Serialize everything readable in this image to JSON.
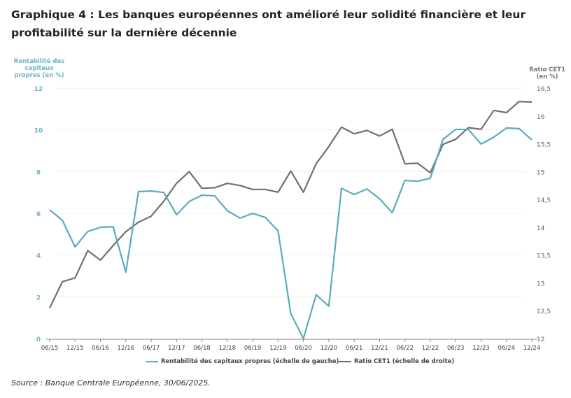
{
  "title": "Graphique 4 : Les banques européennes ont amélioré leur solidité financière et leur profitabilité sur la dernière décennie",
  "source": "Source : Banque Centrale Européenne, 30/06/2025.",
  "chart_data": {
    "type": "line",
    "title": "",
    "ylabel_left": "Rentabilité des capitaux propres (en %)",
    "ylabel_right": "Ratio CET1 (en %)",
    "ylim_left": [
      0,
      12
    ],
    "yticks_left": [
      "0",
      "2",
      "4",
      "6",
      "8",
      "10",
      "12"
    ],
    "ylim_right": [
      12,
      16.5
    ],
    "yticks_right": [
      "12",
      "12,5",
      "13",
      "13,5",
      "14",
      "14,5",
      "15",
      "15,5",
      "16",
      "16,5"
    ],
    "xtick_labels": [
      "06/15",
      "12/15",
      "06/16",
      "12/16",
      "06/17",
      "12/17",
      "06/18",
      "12/18",
      "06/19",
      "12/19",
      "06/20",
      "12/20",
      "06/21",
      "12/21",
      "06/22",
      "12/22",
      "06/23",
      "12/23",
      "06/24",
      "12/24"
    ],
    "x": [
      "06/15",
      "09/15",
      "12/15",
      "03/16",
      "06/16",
      "09/16",
      "12/16",
      "03/17",
      "06/17",
      "09/17",
      "12/17",
      "03/18",
      "06/18",
      "09/18",
      "12/18",
      "03/19",
      "06/19",
      "09/19",
      "12/19",
      "03/20",
      "06/20",
      "09/20",
      "12/20",
      "03/21",
      "06/21",
      "09/21",
      "12/21",
      "03/22",
      "06/22",
      "09/22",
      "12/22",
      "03/23",
      "06/23",
      "09/23",
      "12/23",
      "03/24",
      "06/24",
      "09/24",
      "12/24"
    ],
    "grid": true,
    "legend_position": "bottom",
    "series": [
      {
        "name": "Rentabilité des capitaux propres (échelle de gauche)",
        "axis": "left",
        "color": "#5aabbd",
        "values": [
          6.17,
          5.67,
          4.39,
          5.13,
          5.33,
          5.36,
          3.18,
          7.04,
          7.07,
          7.0,
          5.93,
          6.57,
          6.87,
          6.84,
          6.13,
          5.77,
          6.0,
          5.8,
          5.16,
          1.2,
          0.0,
          2.1,
          1.55,
          7.2,
          6.9,
          7.17,
          6.7,
          6.03,
          7.58,
          7.54,
          7.68,
          9.55,
          10.02,
          10.02,
          9.32,
          9.65,
          10.09,
          10.06,
          9.52
        ]
      },
      {
        "name": "Ratio CET1 (échelle de droite)",
        "axis": "right",
        "color": "#707070",
        "values": [
          12.55,
          13.02,
          13.09,
          13.58,
          13.41,
          13.67,
          13.92,
          14.09,
          14.2,
          14.47,
          14.79,
          15.0,
          14.7,
          14.71,
          14.79,
          14.75,
          14.68,
          14.68,
          14.63,
          15.01,
          14.63,
          15.14,
          15.45,
          15.8,
          15.68,
          15.74,
          15.64,
          15.76,
          15.14,
          15.15,
          14.98,
          15.49,
          15.58,
          15.79,
          15.76,
          16.1,
          16.06,
          16.26,
          16.25
        ]
      }
    ]
  }
}
